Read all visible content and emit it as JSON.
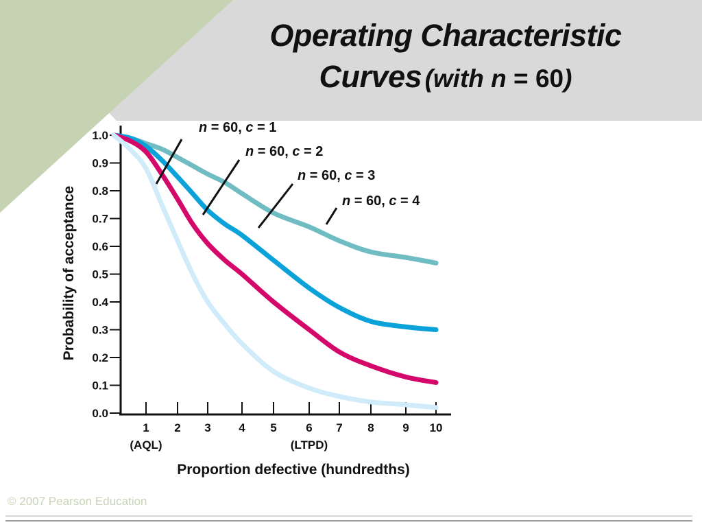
{
  "slide": {
    "title_line1": "Operating Characteristic",
    "title_line2_main": "Curves",
    "title_line2_paren_open": "(with ",
    "title_line2_var": "n",
    "title_line2_rest": " = 60",
    "title_line2_paren_close": ")",
    "copyright": "© 2007 Pearson Education"
  },
  "colors": {
    "header_band": "#d9d9d9",
    "green_corner": "#c6d3b3",
    "c1": "#d0ebfa",
    "c2": "#d4086a",
    "c3": "#0aa2d8",
    "c4": "#6fbcc2"
  },
  "chart_data": {
    "type": "line",
    "xlabel": "Proportion defective (hundredths)",
    "ylabel": "Probability of acceptance",
    "xlim": [
      0,
      10
    ],
    "ylim": [
      0,
      1
    ],
    "x_ticks": [
      1,
      2,
      3,
      4,
      5,
      6,
      7,
      8,
      9,
      10
    ],
    "x_tick_labels": [
      "1",
      "2",
      "3",
      "4",
      "5",
      "6",
      "7",
      "8",
      "9",
      "10"
    ],
    "x_sub_labels": [
      {
        "x": 1,
        "text": "(AQL)"
      },
      {
        "x": 6,
        "text": "(LTPD)"
      }
    ],
    "y_ticks": [
      0.0,
      0.1,
      0.2,
      0.3,
      0.4,
      0.5,
      0.6,
      0.7,
      0.8,
      0.9,
      1.0
    ],
    "y_tick_labels": [
      "0.0",
      "0.1",
      "0.2",
      "0.3",
      "0.4",
      "0.5",
      "0.6",
      "0.7",
      "0.8",
      "0.9",
      "1.0"
    ],
    "grid": false,
    "x": [
      0,
      0.5,
      1,
      1.5,
      2,
      2.5,
      3,
      3.5,
      4,
      5,
      6,
      7,
      8,
      9,
      10
    ],
    "series": [
      {
        "key": "c1",
        "n_label": "n",
        "rest_label": " = 60, ",
        "c_label": "c",
        "c_rest": " = 1",
        "values": [
          1.0,
          0.95,
          0.88,
          0.75,
          0.62,
          0.5,
          0.4,
          0.32,
          0.25,
          0.15,
          0.09,
          0.06,
          0.04,
          0.03,
          0.02
        ]
      },
      {
        "key": "c2",
        "n_label": "n",
        "rest_label": " = 60, ",
        "c_label": "c",
        "c_rest": " = 2",
        "values": [
          1.0,
          0.98,
          0.94,
          0.86,
          0.77,
          0.68,
          0.61,
          0.55,
          0.5,
          0.4,
          0.3,
          0.22,
          0.17,
          0.13,
          0.11
        ]
      },
      {
        "key": "c3",
        "n_label": "n",
        "rest_label": " = 60, ",
        "c_label": "c",
        "c_rest": " = 3",
        "values": [
          1.0,
          0.99,
          0.96,
          0.91,
          0.85,
          0.79,
          0.73,
          0.68,
          0.64,
          0.55,
          0.45,
          0.38,
          0.33,
          0.31,
          0.3
        ]
      },
      {
        "key": "c4",
        "n_label": "n",
        "rest_label": " = 60, ",
        "c_label": "c",
        "c_rest": " = 4",
        "values": [
          1.0,
          0.99,
          0.97,
          0.95,
          0.92,
          0.89,
          0.86,
          0.83,
          0.79,
          0.72,
          0.67,
          0.62,
          0.58,
          0.56,
          0.54
        ]
      }
    ]
  }
}
